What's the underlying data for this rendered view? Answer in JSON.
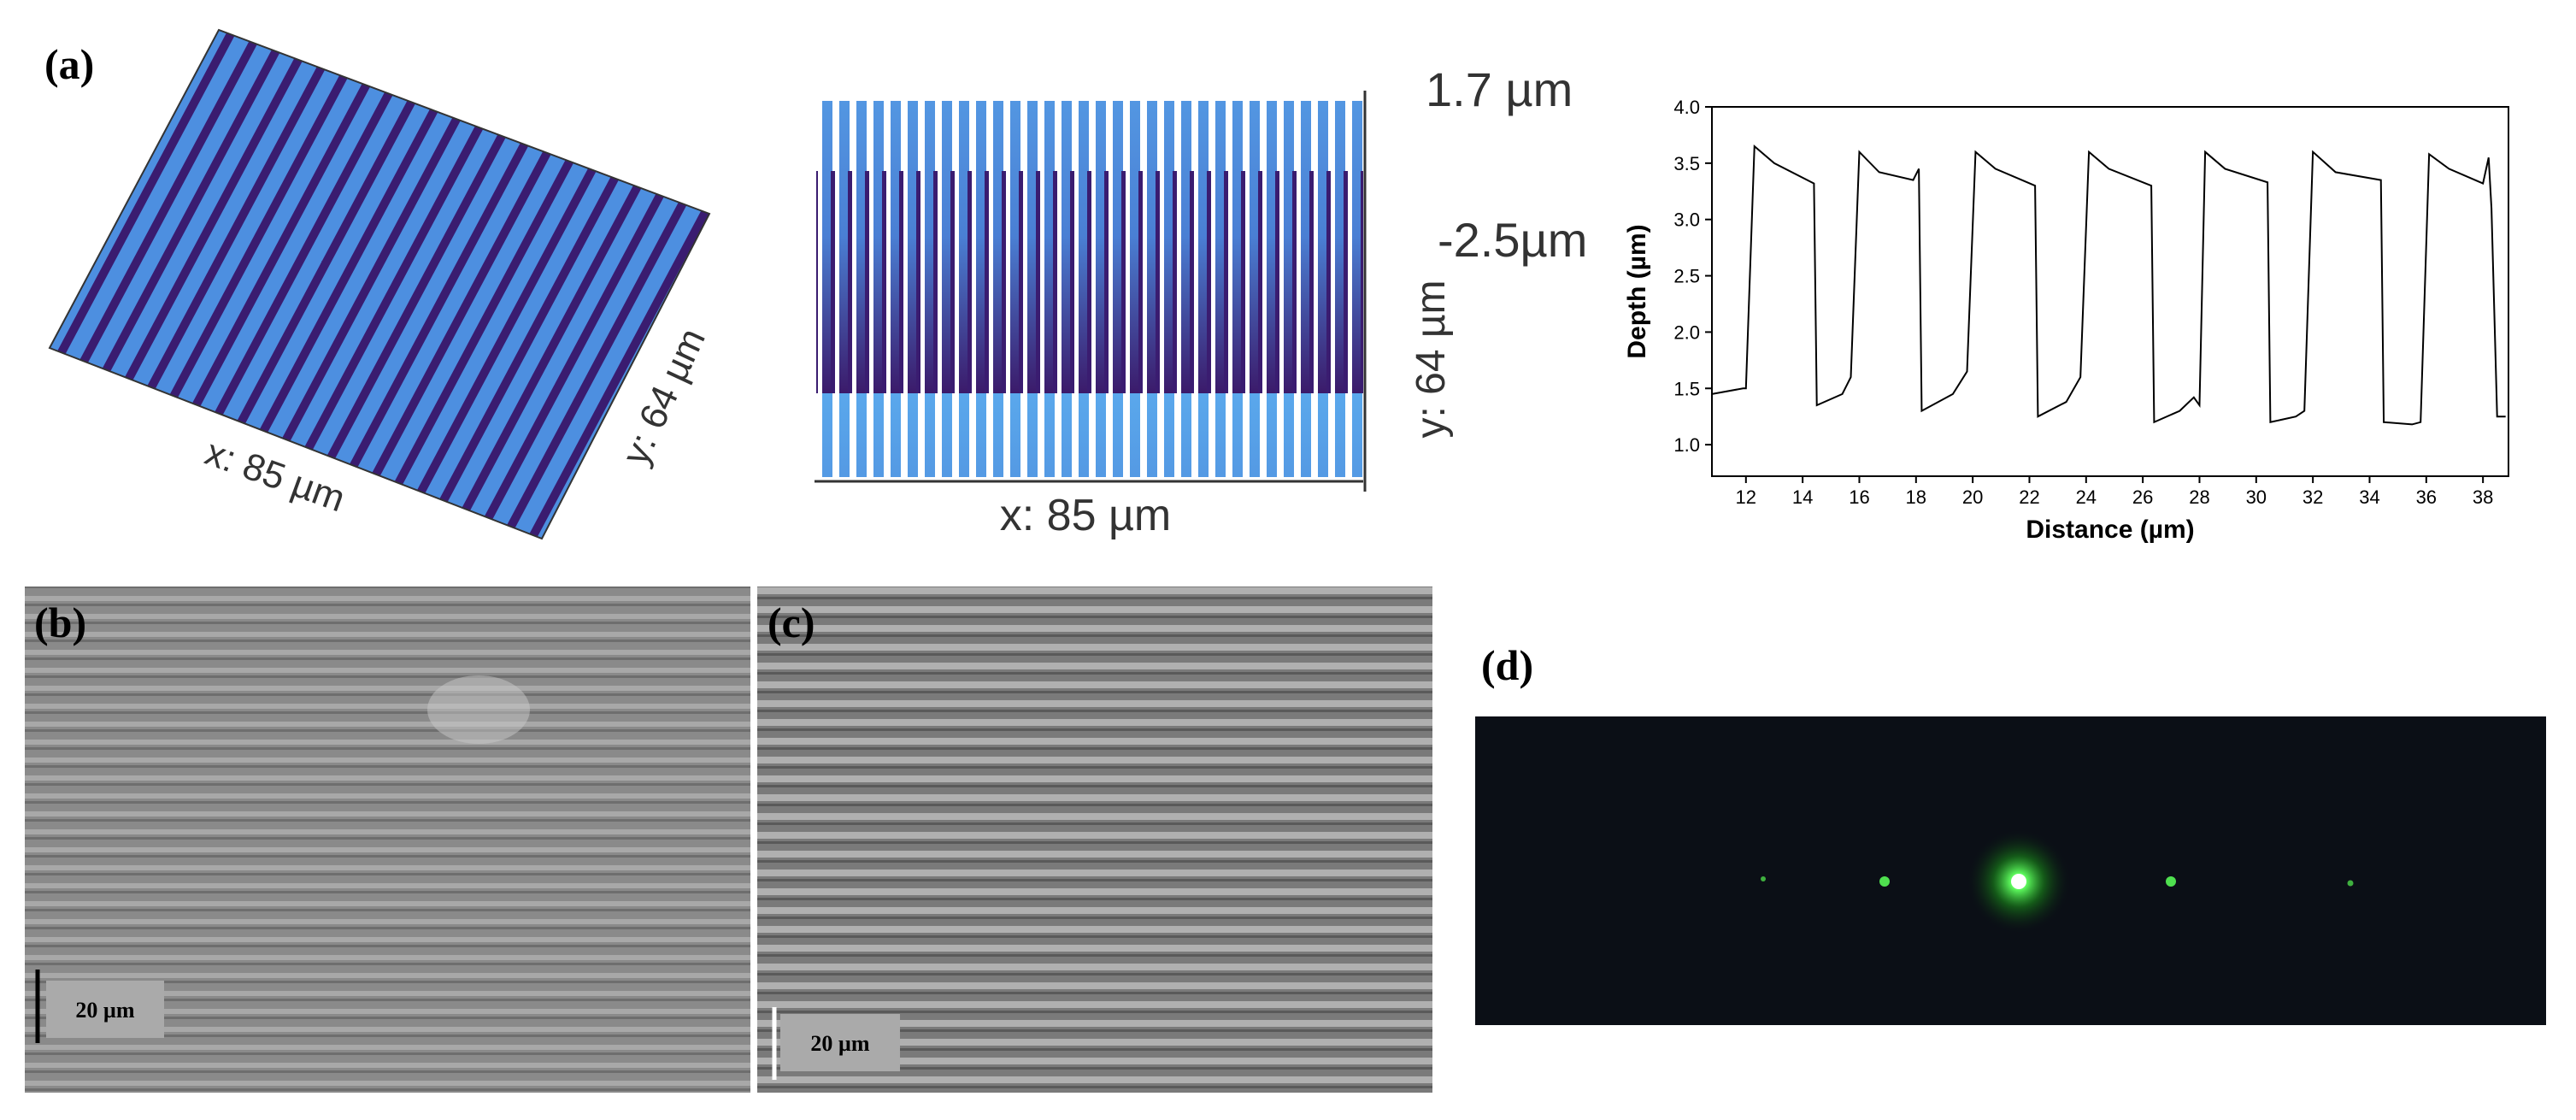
{
  "panels": {
    "a": {
      "label": "(a)",
      "top_view": {
        "x_label": "x: 85 µm",
        "y_label": "y: 64 µm"
      },
      "side_view": {
        "x_label": "x: 85 µm",
        "y_label": "y: 64 µm",
        "z_top": "1.7 µm",
        "z_bottom": "-2.5µm"
      }
    },
    "b": {
      "label": "(b)",
      "scale_bar": "20 µm"
    },
    "c": {
      "label": "(c)",
      "scale_bar": "20 µm"
    },
    "d": {
      "label": "(d)"
    }
  },
  "chart_data": {
    "type": "line",
    "xlabel": "Distance (µm)",
    "ylabel": "Depth (µm)",
    "x": [
      10.8,
      11.9,
      12.0,
      12.3,
      13.0,
      14.4,
      14.5,
      15.4,
      15.7,
      16.0,
      16.7,
      17.9,
      18.1,
      18.2,
      19.3,
      19.8,
      20.1,
      20.8,
      22.2,
      22.3,
      23.3,
      23.8,
      24.1,
      24.8,
      26.3,
      26.4,
      27.3,
      27.8,
      28.0,
      28.2,
      28.9,
      30.4,
      30.5,
      31.4,
      31.7,
      32.0,
      32.8,
      34.4,
      34.5,
      35.5,
      35.8,
      36.1,
      36.8,
      38.0,
      38.2,
      38.3,
      38.5,
      38.8
    ],
    "series": [
      {
        "color": "#000000",
        "values": [
          1.45,
          1.5,
          1.5,
          3.65,
          3.5,
          3.32,
          1.35,
          1.45,
          1.6,
          3.6,
          3.42,
          3.35,
          3.45,
          1.3,
          1.45,
          1.65,
          3.6,
          3.45,
          3.3,
          1.25,
          1.38,
          1.6,
          3.6,
          3.45,
          3.3,
          1.2,
          1.3,
          1.42,
          1.35,
          3.6,
          3.45,
          3.33,
          1.2,
          1.25,
          1.3,
          3.6,
          3.42,
          3.35,
          1.2,
          1.18,
          1.2,
          3.58,
          3.45,
          3.32,
          3.55,
          3.1,
          1.25,
          1.25
        ]
      }
    ],
    "xlim": [
      10.8,
      38.9
    ],
    "ylim": [
      0.72,
      4.0
    ],
    "xticks": [
      12,
      14,
      16,
      18,
      20,
      22,
      24,
      26,
      28,
      30,
      32,
      34,
      36,
      38
    ],
    "yticks": [
      {
        "value": 1,
        "label": "1.0"
      },
      1.5,
      {
        "value": 2,
        "label": "2.0"
      },
      2.5,
      {
        "value": 3,
        "label": "3.0"
      },
      3.5,
      {
        "value": 4,
        "label": "4.0"
      }
    ]
  }
}
